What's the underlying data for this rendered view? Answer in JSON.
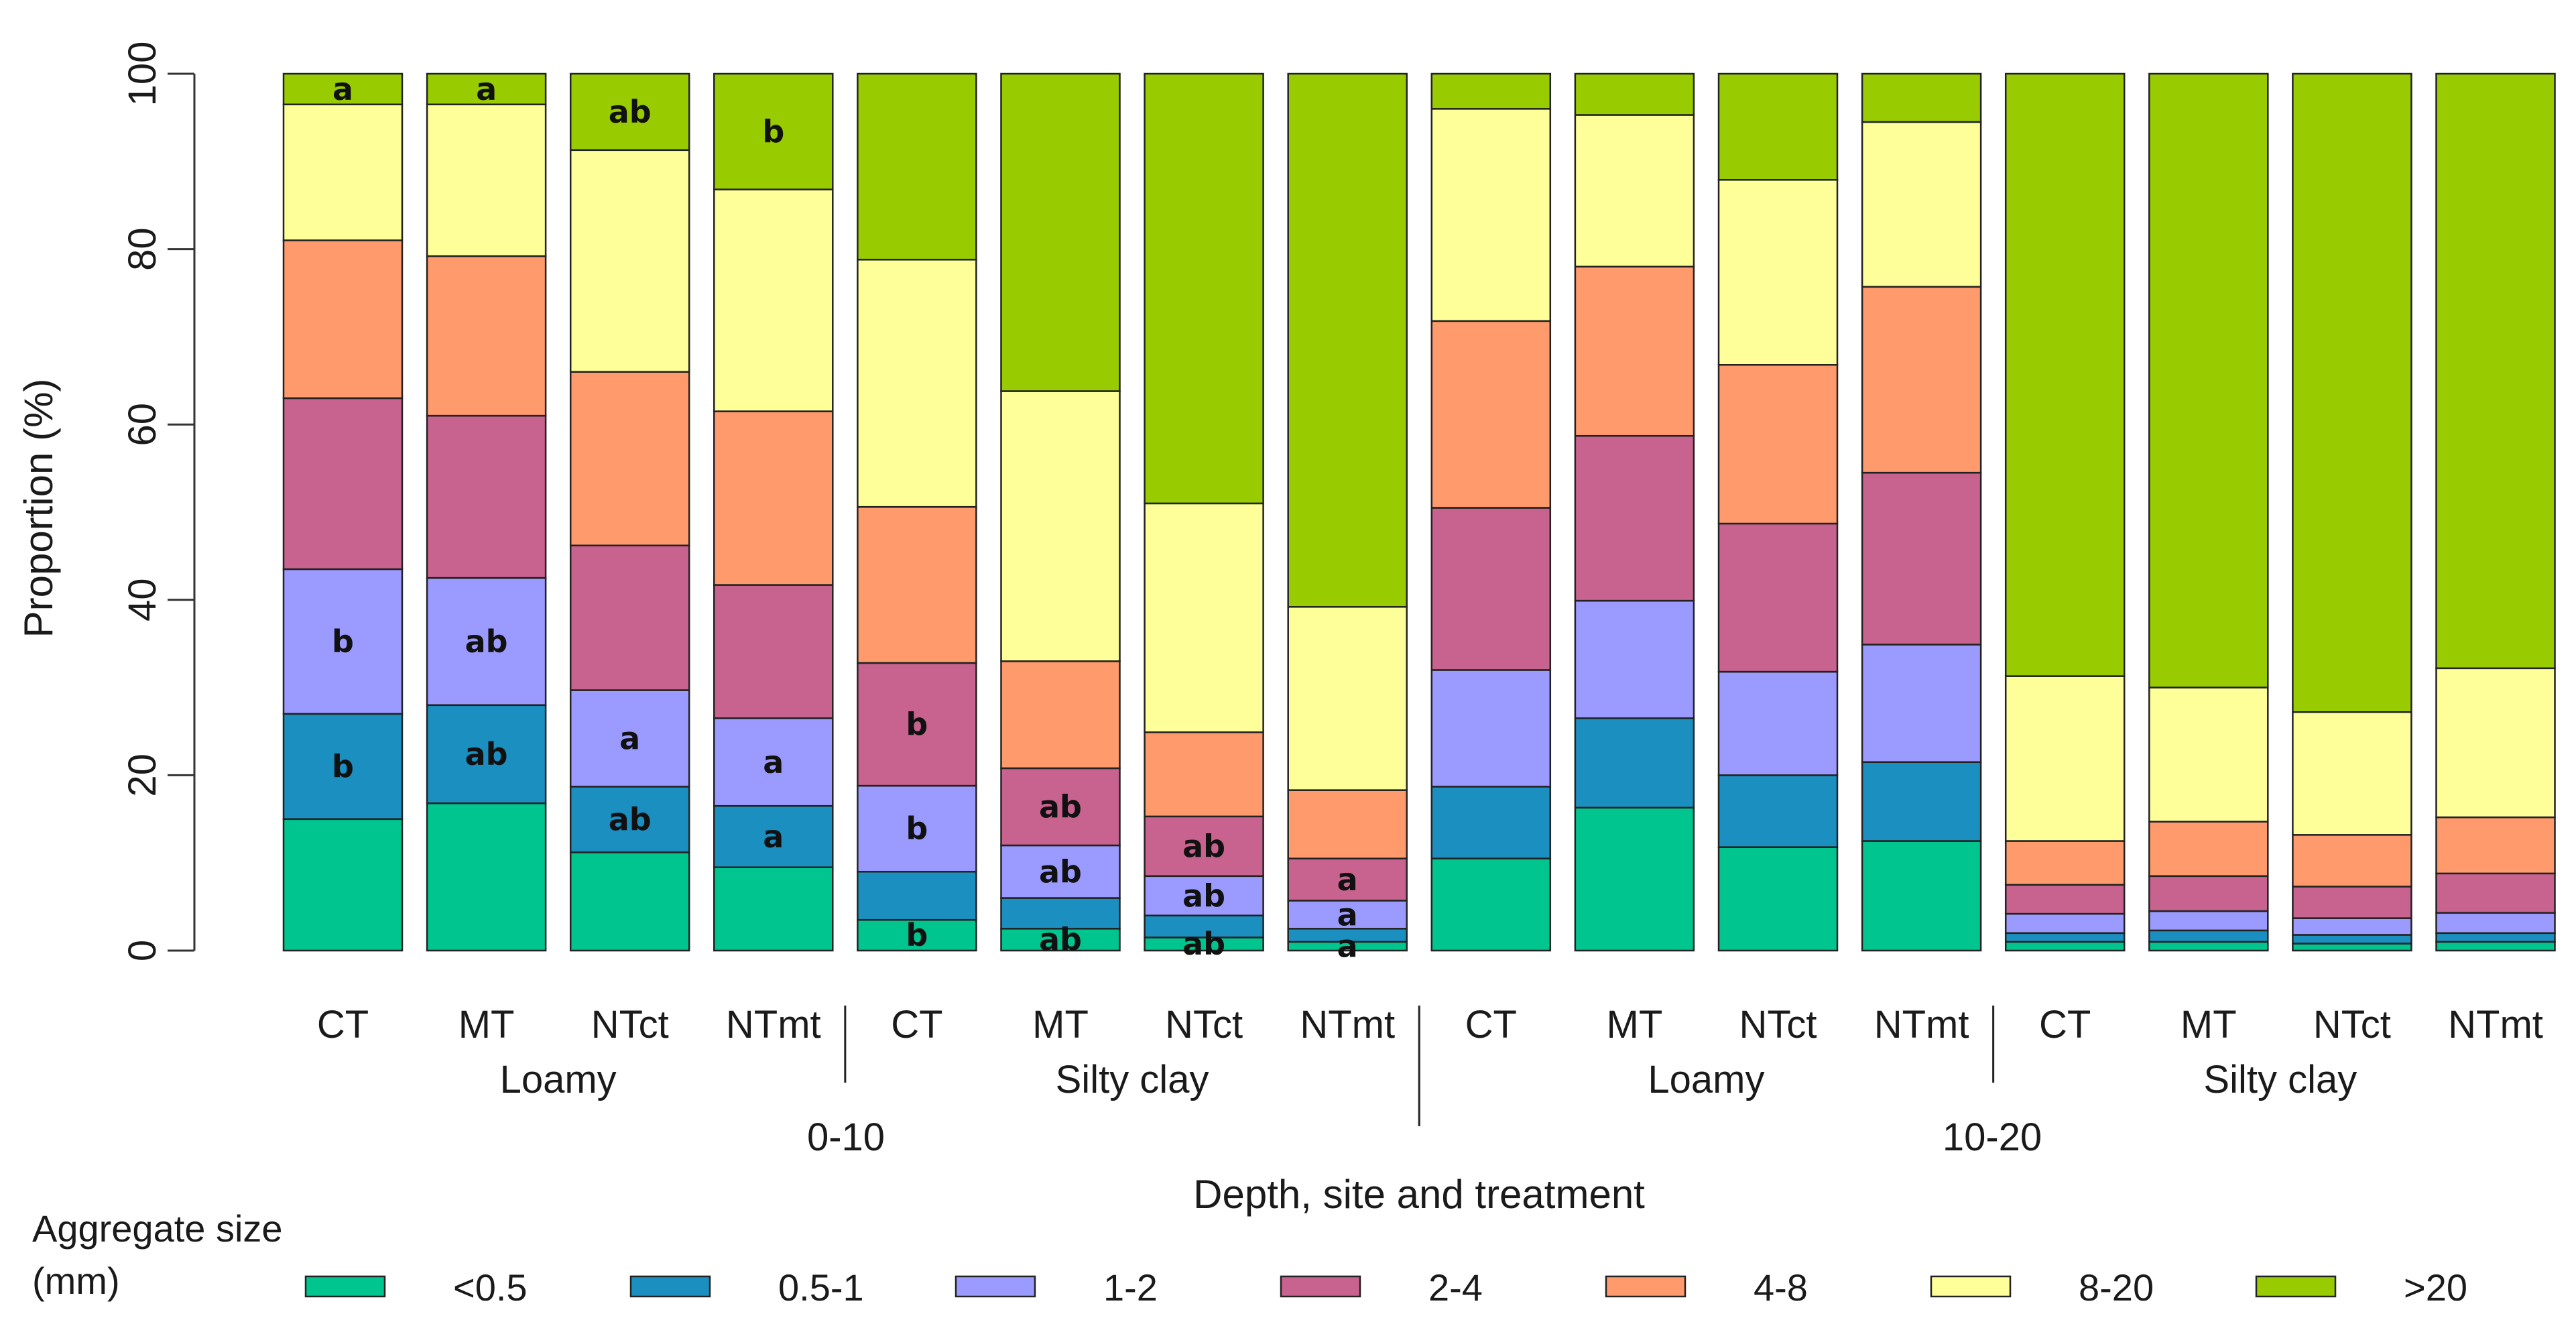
{
  "chart_data": {
    "type": "bar",
    "stacked": true,
    "ylabel": "Proportion (%)",
    "xlabel": "Depth, site and treatment",
    "ylim": [
      0,
      100
    ],
    "yticks": [
      "0",
      "20",
      "40",
      "60",
      "80",
      "100"
    ],
    "legend": {
      "title_line1": "Aggregate size",
      "title_line2": "(mm)",
      "placement": "bottom"
    },
    "size_classes": [
      {
        "name": "<0.5",
        "color": "#00c58f"
      },
      {
        "name": "0.5-1",
        "color": "#1b8fc0"
      },
      {
        "name": "1-2",
        "color": "#9b9bff"
      },
      {
        "name": "2-4",
        "color": "#c8628f"
      },
      {
        "name": "4-8",
        "color": "#ff9a6c"
      },
      {
        "name": "8-20",
        "color": "#ffff9a"
      },
      {
        "name": ">20",
        "color": "#99cc00"
      }
    ],
    "bars": [
      {
        "treatment": "CT",
        "site": "Loamy",
        "depth": "0-10",
        "values": [
          15,
          12,
          16.5,
          19.5,
          18,
          15.5,
          3.5
        ]
      },
      {
        "treatment": "MT",
        "site": "Loamy",
        "depth": "0-10",
        "values": [
          16.8,
          11.2,
          14.5,
          18.5,
          18.2,
          17.3,
          3.5
        ]
      },
      {
        "treatment": "NTct",
        "site": "Loamy",
        "depth": "0-10",
        "values": [
          11.2,
          7.5,
          11,
          16.5,
          19.8,
          25.3,
          8.7
        ]
      },
      {
        "treatment": "NTmt",
        "site": "Loamy",
        "depth": "0-10",
        "values": [
          9.5,
          7,
          10,
          15.2,
          19.8,
          25.3,
          13.2
        ]
      },
      {
        "treatment": "CT",
        "site": "Silty clay",
        "depth": "0-10",
        "values": [
          3.5,
          5.5,
          9.8,
          14,
          17.8,
          28.2,
          21.2
        ]
      },
      {
        "treatment": "MT",
        "site": "Silty clay",
        "depth": "0-10",
        "values": [
          2.5,
          3.5,
          6,
          8.8,
          12.2,
          30.8,
          36.2
        ]
      },
      {
        "treatment": "NTct",
        "site": "Silty clay",
        "depth": "0-10",
        "values": [
          1.5,
          2.5,
          4.5,
          6.8,
          9.6,
          26.1,
          49
        ]
      },
      {
        "treatment": "NTmt",
        "site": "Silty clay",
        "depth": "0-10",
        "values": [
          1,
          1.5,
          3.2,
          4.8,
          7.8,
          20.9,
          60.8
        ]
      },
      {
        "treatment": "CT",
        "site": "Loamy",
        "depth": "10-20",
        "values": [
          10.5,
          8.2,
          13.3,
          18.5,
          21.3,
          24.2,
          4
        ]
      },
      {
        "treatment": "MT",
        "site": "Loamy",
        "depth": "10-20",
        "values": [
          16.3,
          10.2,
          13.4,
          18.8,
          19.3,
          17.3,
          4.7
        ]
      },
      {
        "treatment": "NTct",
        "site": "Loamy",
        "depth": "10-20",
        "values": [
          11.8,
          8.2,
          11.8,
          16.9,
          18.1,
          21.1,
          12.1
        ]
      },
      {
        "treatment": "NTmt",
        "site": "Loamy",
        "depth": "10-20",
        "values": [
          12.5,
          9,
          13.4,
          19.6,
          21.2,
          18.8,
          5.5
        ]
      },
      {
        "treatment": "CT",
        "site": "Silty clay",
        "depth": "10-20",
        "values": [
          1,
          1,
          2.2,
          3.3,
          5,
          18.8,
          68.7
        ]
      },
      {
        "treatment": "MT",
        "site": "Silty clay",
        "depth": "10-20",
        "values": [
          1,
          1.3,
          2.2,
          4,
          6.2,
          15.3,
          70
        ]
      },
      {
        "treatment": "NTct",
        "site": "Silty clay",
        "depth": "10-20",
        "values": [
          0.8,
          1,
          1.9,
          3.6,
          5.9,
          14,
          72.8
        ]
      },
      {
        "treatment": "NTmt",
        "site": "Silty clay",
        "depth": "10-20",
        "values": [
          1,
          1,
          2.3,
          4.5,
          6.4,
          17,
          67.8
        ]
      }
    ],
    "site_groups": [
      {
        "label": "Loamy",
        "bars": [
          0,
          3
        ]
      },
      {
        "label": "Silty clay",
        "bars": [
          4,
          7
        ]
      },
      {
        "label": "Loamy",
        "bars": [
          8,
          11
        ]
      },
      {
        "label": "Silty clay",
        "bars": [
          12,
          15
        ]
      }
    ],
    "depth_groups": [
      {
        "label": "0-10",
        "bars": [
          0,
          7
        ]
      },
      {
        "label": "10-20",
        "bars": [
          8,
          15
        ]
      }
    ],
    "annotations": [
      {
        "bar": 0,
        "class": 6,
        "text": "a"
      },
      {
        "bar": 1,
        "class": 6,
        "text": "a"
      },
      {
        "bar": 2,
        "class": 6,
        "text": "ab"
      },
      {
        "bar": 3,
        "class": 6,
        "text": "b"
      },
      {
        "bar": 0,
        "class": 2,
        "text": "b"
      },
      {
        "bar": 1,
        "class": 2,
        "text": "ab"
      },
      {
        "bar": 2,
        "class": 2,
        "text": "a"
      },
      {
        "bar": 3,
        "class": 2,
        "text": "a"
      },
      {
        "bar": 0,
        "class": 1,
        "text": "b"
      },
      {
        "bar": 1,
        "class": 1,
        "text": "ab"
      },
      {
        "bar": 2,
        "class": 1,
        "text": "ab"
      },
      {
        "bar": 3,
        "class": 1,
        "text": "a"
      },
      {
        "bar": 4,
        "class": 3,
        "text": "b"
      },
      {
        "bar": 5,
        "class": 3,
        "text": "ab"
      },
      {
        "bar": 6,
        "class": 3,
        "text": "ab"
      },
      {
        "bar": 7,
        "class": 3,
        "text": "a"
      },
      {
        "bar": 4,
        "class": 2,
        "text": "b"
      },
      {
        "bar": 5,
        "class": 2,
        "text": "ab"
      },
      {
        "bar": 6,
        "class": 2,
        "text": "ab"
      },
      {
        "bar": 7,
        "class": 2,
        "text": "a"
      },
      {
        "bar": 4,
        "class": 0,
        "text": "b"
      },
      {
        "bar": 5,
        "class": 0,
        "text": "ab"
      },
      {
        "bar": 6,
        "class": 0,
        "text": "ab"
      },
      {
        "bar": 7,
        "class": 0,
        "text": "a"
      }
    ]
  }
}
